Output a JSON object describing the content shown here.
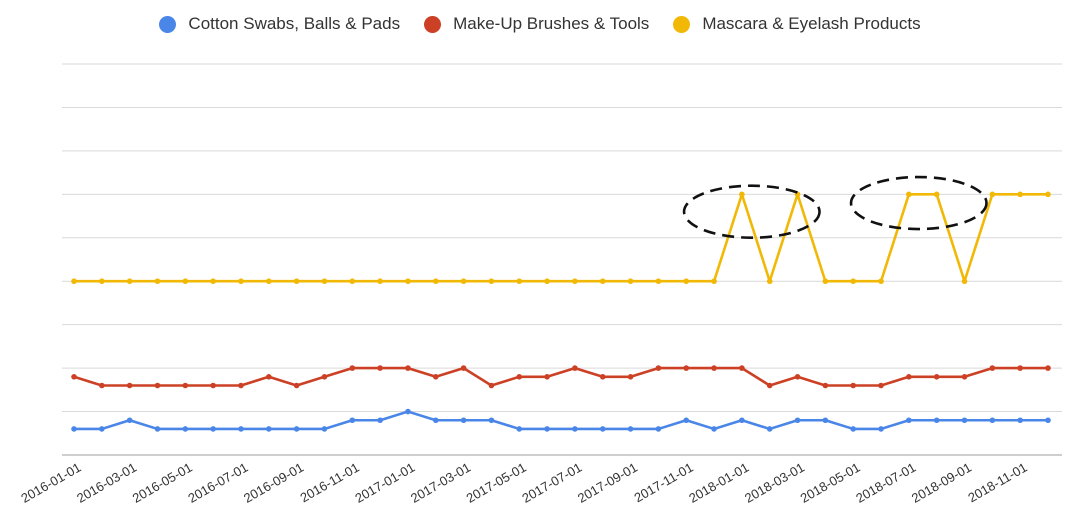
{
  "chart_data": {
    "type": "line",
    "title": "",
    "xlabel": "",
    "ylabel": "",
    "ylim": [
      0,
      9
    ],
    "grid": true,
    "legend_position": "top",
    "x": [
      "2016-01-01",
      "2016-02-01",
      "2016-03-01",
      "2016-04-01",
      "2016-05-01",
      "2016-06-01",
      "2016-07-01",
      "2016-08-01",
      "2016-09-01",
      "2016-10-01",
      "2016-11-01",
      "2016-12-01",
      "2017-01-01",
      "2017-02-01",
      "2017-03-01",
      "2017-04-01",
      "2017-05-01",
      "2017-06-01",
      "2017-07-01",
      "2017-08-01",
      "2017-09-01",
      "2017-10-01",
      "2017-11-01",
      "2017-12-01",
      "2018-01-01",
      "2018-02-01",
      "2018-03-01",
      "2018-04-01",
      "2018-05-01",
      "2018-06-01",
      "2018-07-01",
      "2018-08-01",
      "2018-09-01",
      "2018-10-01",
      "2018-11-01",
      "2018-12-01"
    ],
    "tick_labels": [
      "2016-01-01",
      "2016-03-01",
      "2016-05-01",
      "2016-07-01",
      "2016-09-01",
      "2016-11-01",
      "2017-01-01",
      "2017-03-01",
      "2017-05-01",
      "2017-07-01",
      "2017-09-01",
      "2017-11-01",
      "2018-01-01",
      "2018-03-01",
      "2018-05-01",
      "2018-07-01",
      "2018-09-01",
      "2018-11-01"
    ],
    "series": [
      {
        "name": "Cotton Swabs, Balls & Pads",
        "color": "#4A86E8",
        "values": [
          0.6,
          0.6,
          0.8,
          0.6,
          0.6,
          0.6,
          0.6,
          0.6,
          0.6,
          0.6,
          0.8,
          0.8,
          1.0,
          0.8,
          0.8,
          0.8,
          0.6,
          0.6,
          0.6,
          0.6,
          0.6,
          0.6,
          0.8,
          0.6,
          0.8,
          0.6,
          0.8,
          0.8,
          0.6,
          0.6,
          0.8,
          0.8,
          0.8,
          0.8,
          0.8,
          0.8
        ]
      },
      {
        "name": "Make-Up Brushes & Tools",
        "color": "#CC4125",
        "values": [
          1.8,
          1.6,
          1.6,
          1.6,
          1.6,
          1.6,
          1.6,
          1.8,
          1.6,
          1.8,
          2.0,
          2.0,
          2.0,
          1.8,
          2.0,
          1.6,
          1.8,
          1.8,
          2.0,
          1.8,
          1.8,
          2.0,
          2.0,
          2.0,
          2.0,
          1.6,
          1.8,
          1.6,
          1.6,
          1.6,
          1.8,
          1.8,
          1.8,
          2.0,
          2.0,
          2.0
        ]
      },
      {
        "name": "Mascara & Eyelash Products",
        "color": "#F1B906",
        "values": [
          4,
          4,
          4,
          4,
          4,
          4,
          4,
          4,
          4,
          4,
          4,
          4,
          4,
          4,
          4,
          4,
          4,
          4,
          4,
          4,
          4,
          4,
          4,
          4,
          6,
          4,
          6,
          4,
          4,
          4,
          6,
          6,
          4,
          6,
          6,
          6
        ]
      }
    ],
    "annotations": [
      {
        "type": "dashed-ellipse",
        "x_range": [
          "2017-12-01",
          "2018-03-01"
        ],
        "y_center": 5.6
      },
      {
        "type": "dashed-ellipse",
        "x_range": [
          "2018-06-01",
          "2018-09-01"
        ],
        "y_center": 5.8
      }
    ]
  }
}
